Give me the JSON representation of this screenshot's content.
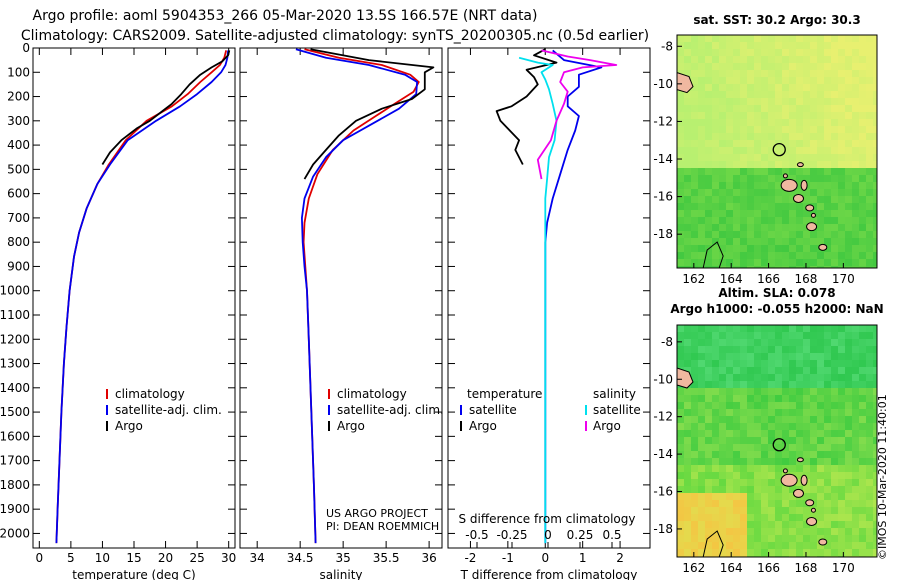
{
  "header": {
    "line1": "Argo profile: aoml 5904353_266 05-Mar-2020 13.5S 166.57E (NRT data)",
    "line2": "Climatology: CARS2009. Satellite-adjusted climatology: synTS_20200305.nc (0.5d earlier)"
  },
  "colors": {
    "clim": "#e00000",
    "sat": "#0000ee",
    "argo": "#000000",
    "sal_sat": "#00e0ee",
    "sal_argo": "#ee00ee"
  },
  "depth_axis": {
    "ticks": [
      0,
      100,
      200,
      300,
      400,
      500,
      600,
      700,
      800,
      900,
      1000,
      1100,
      1200,
      1300,
      1400,
      1500,
      1600,
      1700,
      1800,
      1900,
      2000
    ],
    "ylim": [
      0,
      2060
    ]
  },
  "chart_data": [
    {
      "type": "line",
      "id": "temperature",
      "title": "",
      "xlabel": "temperature (deg C)",
      "ylabel": "depth",
      "xlim": [
        -1,
        31
      ],
      "ylim": [
        2060,
        0
      ],
      "xticks": [
        0,
        5,
        10,
        15,
        20,
        25,
        30
      ],
      "legend": [
        "climatology",
        "satellite-adj. clim.",
        "Argo"
      ],
      "series": [
        {
          "name": "climatology",
          "color": "clim",
          "points": [
            [
              29.6,
              10
            ],
            [
              29.3,
              40
            ],
            [
              28.6,
              70
            ],
            [
              27.3,
              100
            ],
            [
              25.5,
              140
            ],
            [
              23.5,
              190
            ],
            [
              21.0,
              240
            ],
            [
              17.0,
              300
            ],
            [
              13.7,
              380
            ],
            [
              11.0,
              480
            ],
            [
              9.2,
              560
            ],
            [
              7.5,
              660
            ],
            [
              6.3,
              760
            ],
            [
              5.5,
              860
            ],
            [
              4.8,
              1000
            ],
            [
              4.3,
              1150
            ],
            [
              3.9,
              1300
            ],
            [
              3.5,
              1500
            ],
            [
              3.2,
              1700
            ],
            [
              2.9,
              1900
            ],
            [
              2.7,
              2040
            ]
          ]
        },
        {
          "name": "satellite-adj. clim.",
          "color": "sat",
          "points": [
            [
              29.9,
              10
            ],
            [
              29.8,
              40
            ],
            [
              29.5,
              70
            ],
            [
              28.8,
              100
            ],
            [
              27.3,
              140
            ],
            [
              25.0,
              190
            ],
            [
              22.3,
              240
            ],
            [
              18.5,
              300
            ],
            [
              14.0,
              380
            ],
            [
              11.2,
              480
            ],
            [
              9.2,
              560
            ],
            [
              7.5,
              660
            ],
            [
              6.3,
              760
            ],
            [
              5.5,
              860
            ],
            [
              4.8,
              1000
            ],
            [
              4.3,
              1150
            ],
            [
              3.9,
              1300
            ],
            [
              3.5,
              1500
            ],
            [
              3.2,
              1700
            ],
            [
              2.9,
              1900
            ],
            [
              2.7,
              2040
            ]
          ]
        },
        {
          "name": "Argo",
          "color": "argo",
          "points": [
            [
              30.1,
              10
            ],
            [
              29.9,
              30
            ],
            [
              29.0,
              55
            ],
            [
              27.3,
              80
            ],
            [
              25.5,
              110
            ],
            [
              23.8,
              150
            ],
            [
              22.5,
              190
            ],
            [
              21.0,
              230
            ],
            [
              19.5,
              260
            ],
            [
              17.5,
              300
            ],
            [
              15.5,
              330
            ],
            [
              13.0,
              380
            ],
            [
              11.2,
              430
            ],
            [
              10.0,
              480
            ]
          ]
        }
      ]
    },
    {
      "type": "line",
      "id": "salinity",
      "title": "",
      "xlabel": "salinity",
      "ylabel": "depth",
      "xlim": [
        33.8,
        36.15
      ],
      "ylim": [
        2060,
        0
      ],
      "xticks": [
        34,
        34.5,
        35,
        35.5,
        36
      ],
      "legend": [
        "climatology",
        "satellite-adj. clim.",
        "Argo"
      ],
      "series": [
        {
          "name": "climatology",
          "color": "clim",
          "points": [
            [
              34.55,
              5
            ],
            [
              34.95,
              40
            ],
            [
              35.45,
              70
            ],
            [
              35.78,
              110
            ],
            [
              35.88,
              140
            ],
            [
              35.82,
              180
            ],
            [
              35.6,
              230
            ],
            [
              35.38,
              280
            ],
            [
              35.12,
              340
            ],
            [
              34.88,
              420
            ],
            [
              34.7,
              520
            ],
            [
              34.6,
              620
            ],
            [
              34.55,
              720
            ],
            [
              34.54,
              800
            ],
            [
              34.56,
              900
            ],
            [
              34.58,
              1000
            ],
            [
              34.6,
              1200
            ],
            [
              34.62,
              1400
            ],
            [
              34.64,
              1600
            ],
            [
              34.66,
              1800
            ],
            [
              34.68,
              2040
            ]
          ]
        },
        {
          "name": "satellite-adj. clim.",
          "color": "sat",
          "points": [
            [
              34.45,
              5
            ],
            [
              34.8,
              40
            ],
            [
              35.3,
              70
            ],
            [
              35.72,
              110
            ],
            [
              35.86,
              140
            ],
            [
              35.85,
              190
            ],
            [
              35.65,
              250
            ],
            [
              35.3,
              320
            ],
            [
              35.0,
              380
            ],
            [
              34.8,
              450
            ],
            [
              34.65,
              530
            ],
            [
              34.55,
              620
            ],
            [
              34.52,
              700
            ],
            [
              34.53,
              800
            ],
            [
              34.55,
              900
            ],
            [
              34.58,
              1000
            ],
            [
              34.6,
              1200
            ],
            [
              34.62,
              1400
            ],
            [
              34.64,
              1600
            ],
            [
              34.66,
              1800
            ],
            [
              34.68,
              2040
            ]
          ]
        },
        {
          "name": "Argo",
          "color": "argo",
          "points": [
            [
              34.62,
              5
            ],
            [
              35.3,
              50
            ],
            [
              36.05,
              80
            ],
            [
              35.95,
              100
            ],
            [
              35.95,
              130
            ],
            [
              35.95,
              170
            ],
            [
              35.8,
              210
            ],
            [
              35.45,
              250
            ],
            [
              35.15,
              300
            ],
            [
              34.95,
              360
            ],
            [
              34.8,
              420
            ],
            [
              34.65,
              480
            ],
            [
              34.55,
              540
            ]
          ]
        }
      ]
    },
    {
      "type": "line",
      "id": "difference",
      "title": "",
      "xlabel": "T difference from climatology",
      "ylabel": "depth",
      "xlim": [
        -2.6,
        2.8
      ],
      "ylim": [
        2060,
        0
      ],
      "xticks": [
        -2,
        -1,
        0,
        1,
        2
      ],
      "secondary_axis": {
        "label": "S difference from climatology",
        "ticks": [
          "-0.5",
          "-0.25",
          "0",
          "0.25",
          "0.5"
        ]
      },
      "legend": [
        "temperature",
        "satellite",
        "Argo",
        "salinity",
        "satellite",
        "Argo"
      ],
      "series": [
        {
          "name": "T satellite",
          "color": "sat",
          "points": [
            [
              0.2,
              10
            ],
            [
              0.5,
              50
            ],
            [
              1.5,
              80
            ],
            [
              0.9,
              110
            ],
            [
              0.9,
              160
            ],
            [
              0.6,
              200
            ],
            [
              0.6,
              240
            ],
            [
              0.9,
              280
            ],
            [
              0.8,
              340
            ],
            [
              0.6,
              420
            ],
            [
              0.4,
              520
            ],
            [
              0.2,
              620
            ],
            [
              0.05,
              720
            ],
            [
              0,
              800
            ],
            [
              0,
              2040
            ]
          ]
        },
        {
          "name": "T Argo",
          "color": "argo",
          "points": [
            [
              0,
              5
            ],
            [
              -0.3,
              30
            ],
            [
              0.3,
              60
            ],
            [
              -0.5,
              90
            ],
            [
              -0.3,
              120
            ],
            [
              -0.2,
              150
            ],
            [
              -0.5,
              200
            ],
            [
              -0.9,
              240
            ],
            [
              -1.3,
              260
            ],
            [
              -1.2,
              300
            ],
            [
              -0.7,
              380
            ],
            [
              -0.8,
              420
            ],
            [
              -0.6,
              480
            ]
          ]
        },
        {
          "name": "S satellite",
          "color": "sal_sat",
          "points": [
            [
              -0.7,
              40
            ],
            [
              -0.2,
              60
            ],
            [
              0.2,
              70
            ],
            [
              -0.1,
              100
            ],
            [
              0,
              130
            ],
            [
              0.1,
              170
            ],
            [
              0.2,
              230
            ],
            [
              0.3,
              300
            ],
            [
              0.25,
              380
            ],
            [
              0.1,
              450
            ],
            [
              0.05,
              540
            ],
            [
              0,
              620
            ],
            [
              0,
              700
            ],
            [
              0,
              2040
            ]
          ]
        },
        {
          "name": "S Argo",
          "color": "sal_argo",
          "points": [
            [
              -0.1,
              10
            ],
            [
              0.6,
              35
            ],
            [
              1.2,
              50
            ],
            [
              1.9,
              70
            ],
            [
              1.0,
              80
            ],
            [
              0.5,
              100
            ],
            [
              0.4,
              140
            ],
            [
              0.6,
              180
            ],
            [
              0.5,
              230
            ],
            [
              0.3,
              300
            ],
            [
              0.15,
              380
            ],
            [
              -0.2,
              460
            ],
            [
              -0.1,
              540
            ]
          ]
        }
      ]
    },
    {
      "type": "heatmap",
      "id": "sst_map",
      "title": "sat. SST: 30.2 Argo: 30.3",
      "xticks": [
        162,
        164,
        166,
        168,
        170
      ],
      "yticks": [
        -8,
        -10,
        -12,
        -14,
        -16,
        -18
      ],
      "xlim": [
        161.1,
        171.8
      ],
      "ylim": [
        -19.8,
        -7.4
      ],
      "argo_position": [
        166.57,
        -13.5
      ]
    },
    {
      "type": "heatmap",
      "id": "sla_map",
      "title": "Altim. SLA: 0.078",
      "subtitle": "Argo h1000: -0.055 h2000: NaN",
      "xticks": [
        162,
        164,
        166,
        168,
        170
      ],
      "yticks": [
        -8,
        -10,
        -12,
        -14,
        -16,
        -18
      ],
      "xlim": [
        161.1,
        171.8
      ],
      "ylim": [
        -19.5,
        -7.1
      ],
      "argo_position": [
        166.57,
        -13.5
      ]
    }
  ],
  "legends": {
    "temp": [
      "climatology",
      "satellite-adj. clim.",
      "Argo"
    ],
    "sal": [
      "climatology",
      "satellite-adj. clim.",
      "Argo"
    ],
    "diff_t_header": "temperature",
    "diff_t": [
      "satellite",
      "Argo"
    ],
    "diff_s_header": "salinity",
    "diff_s": [
      "satellite",
      "Argo"
    ]
  },
  "credits": {
    "line1": "US ARGO PROJECT",
    "line2": "PI: DEAN ROEMMICH"
  },
  "stamp": "©IMOS 10-Mar-2020 11:40:01"
}
